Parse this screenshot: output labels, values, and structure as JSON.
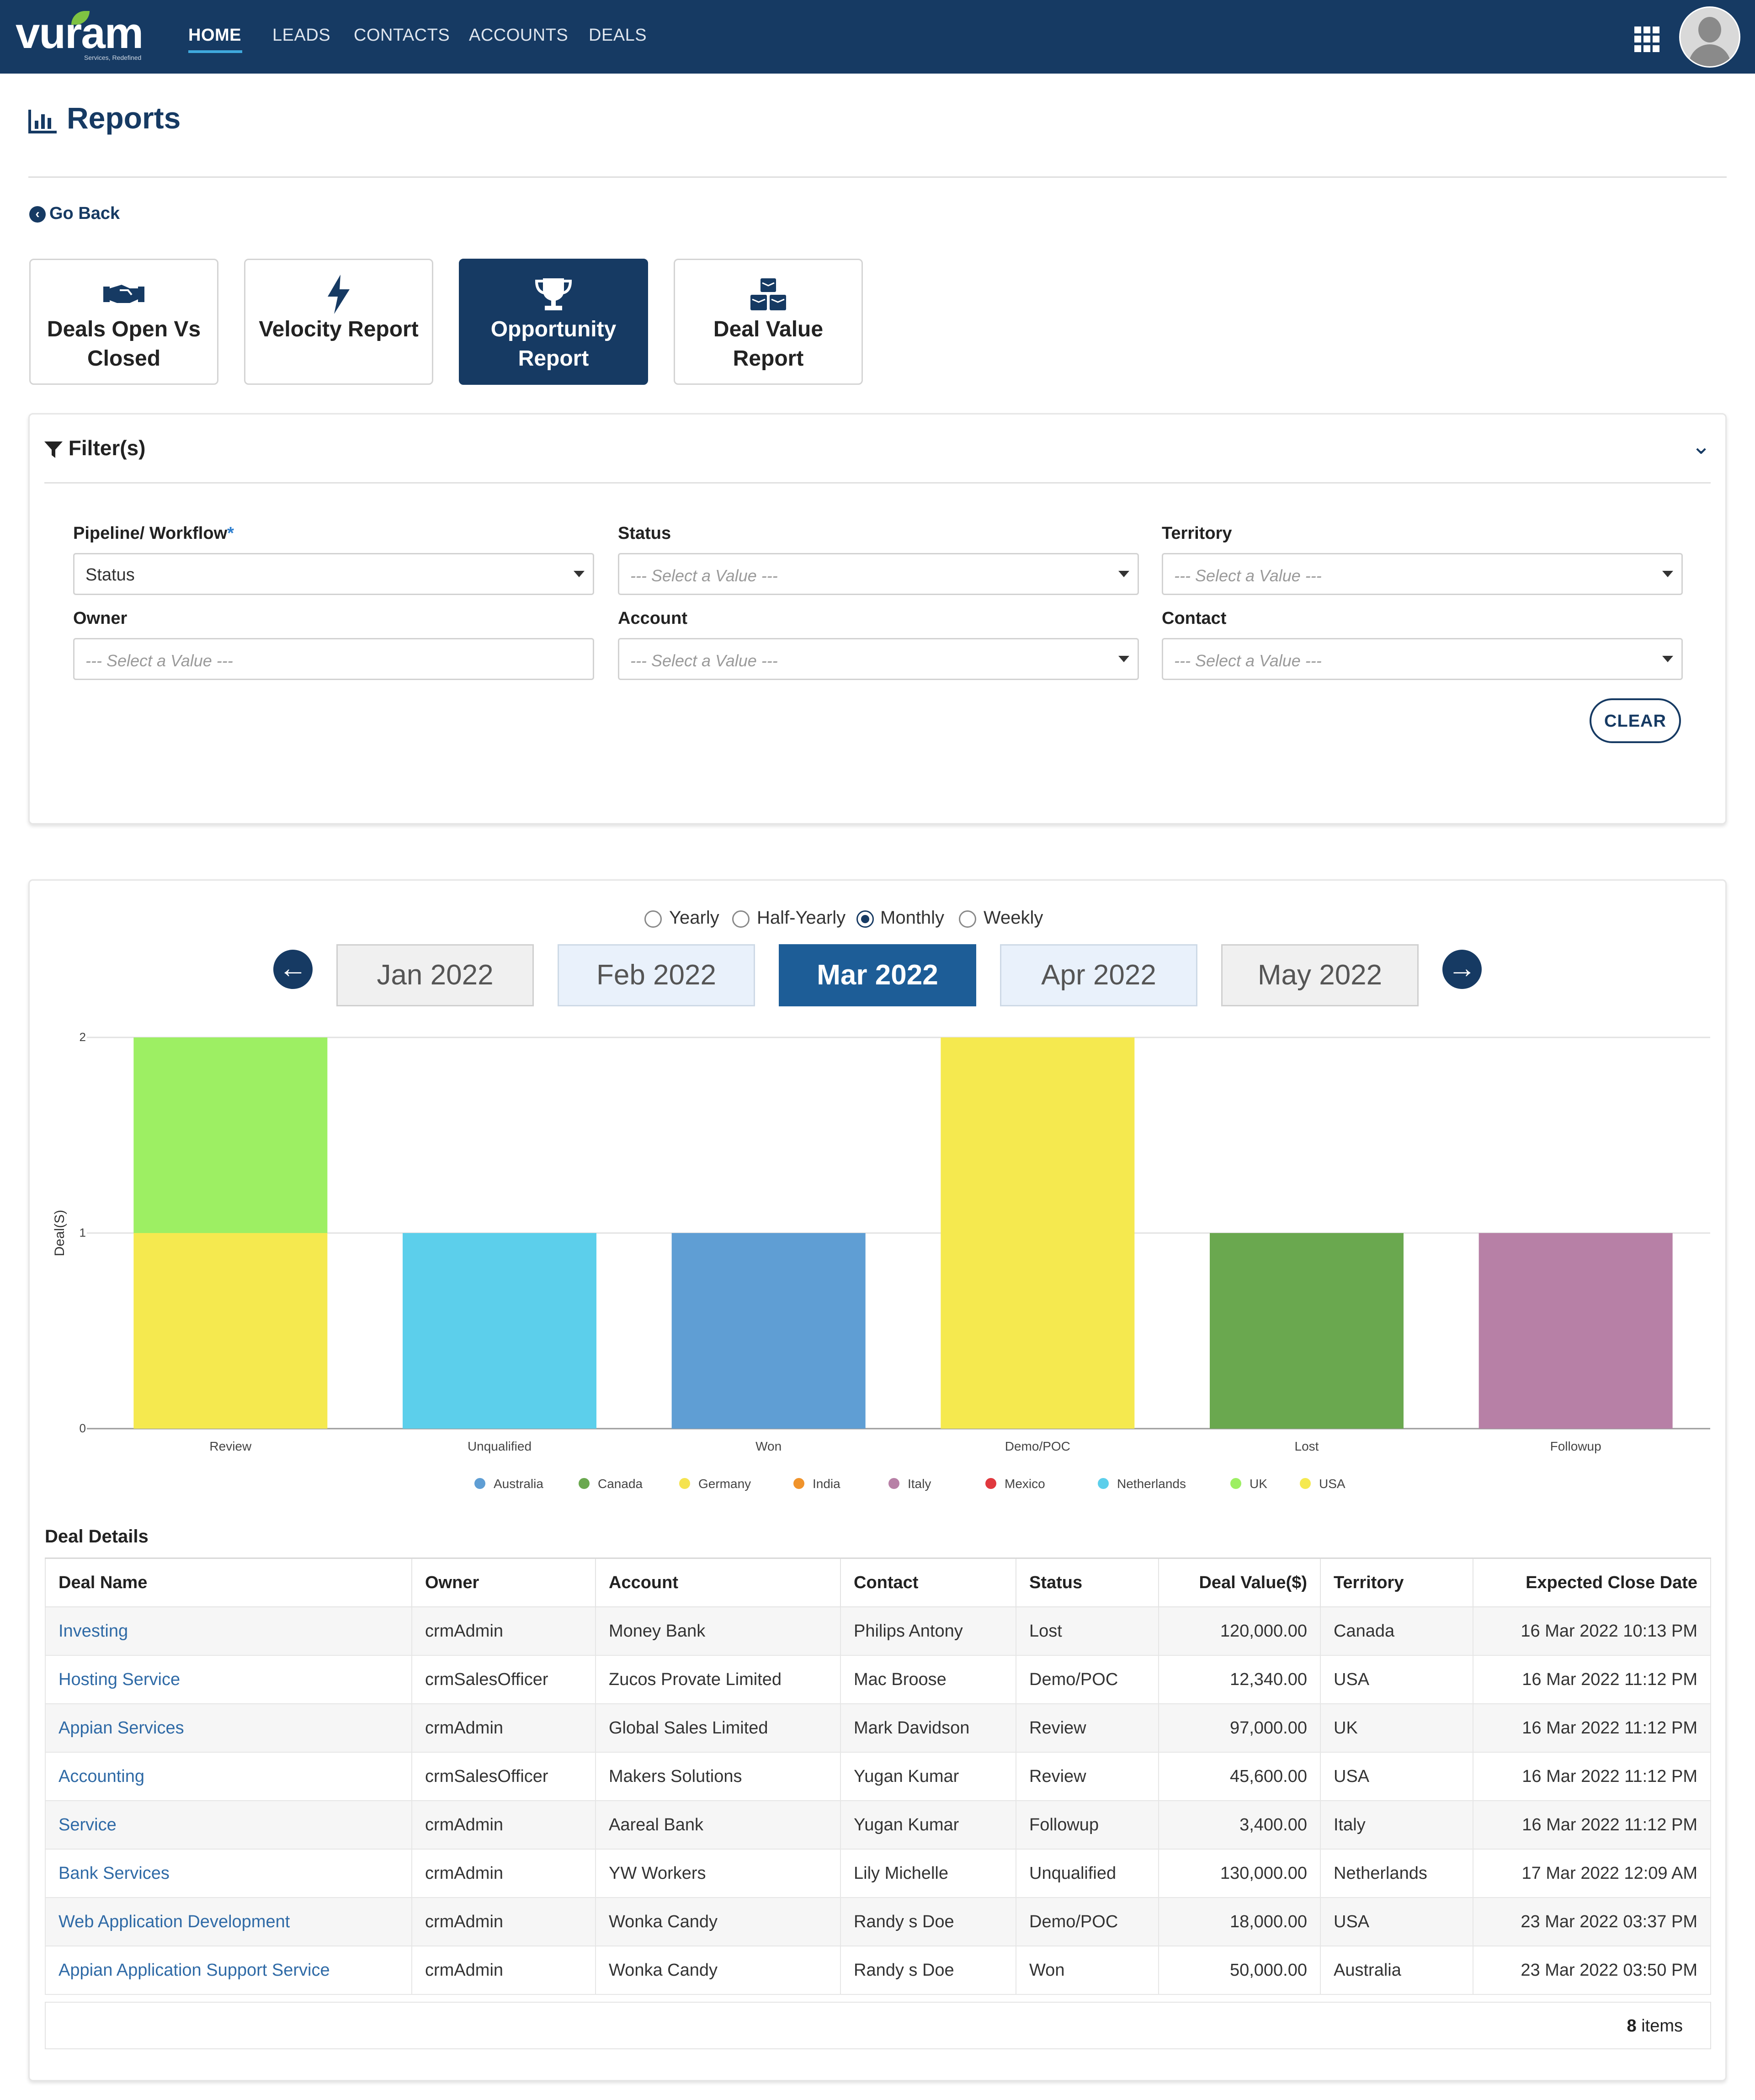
{
  "brand": {
    "logo": "vuram",
    "tagline": "Services, Redefined"
  },
  "nav": {
    "items": [
      "HOME",
      "LEADS",
      "CONTACTS",
      "ACCOUNTS",
      "DEALS"
    ],
    "active": "HOME"
  },
  "page": {
    "title": "Reports",
    "back": "Go Back"
  },
  "report_tabs": [
    {
      "label": "Deals Open Vs Closed",
      "icon": "handshake-icon"
    },
    {
      "label": "Velocity Report",
      "icon": "bolt-icon"
    },
    {
      "label": "Opportunity Report",
      "icon": "trophy-icon",
      "active": true
    },
    {
      "label": "Deal Value Report",
      "icon": "cubes-icon"
    }
  ],
  "filters": {
    "title": "Filter(s)",
    "pipeline": {
      "label": "Pipeline/ Workflow",
      "required": "*",
      "value": "Status"
    },
    "status": {
      "label": "Status",
      "placeholder": "--- Select a Value ---"
    },
    "territory": {
      "label": "Territory",
      "placeholder": "--- Select a Value ---"
    },
    "owner": {
      "label": "Owner",
      "placeholder": "--- Select a Value ---"
    },
    "account": {
      "label": "Account",
      "placeholder": "--- Select a Value ---"
    },
    "contact": {
      "label": "Contact",
      "placeholder": "--- Select a Value ---"
    },
    "clear_label": "CLEAR"
  },
  "period": {
    "options": [
      "Yearly",
      "Half-Yearly",
      "Monthly",
      "Weekly"
    ],
    "selected": "Monthly",
    "months": [
      "Jan 2022",
      "Feb 2022",
      "Mar 2022",
      "Apr 2022",
      "May 2022"
    ],
    "active_month": "Mar 2022"
  },
  "colors": {
    "brand": "#163a63",
    "Australia": "#5f9ed4",
    "Canada": "#6aa84f",
    "Germany": "#f5e34f",
    "India": "#f0932b",
    "Italy": "#b780a6",
    "Mexico": "#e0383e",
    "Netherlands": "#5ccfeb",
    "UK": "#9def63",
    "USA": "#f5e94f"
  },
  "chart_data": {
    "type": "bar",
    "stacked": true,
    "ylabel": "Deal(S)",
    "ylim": [
      0,
      2
    ],
    "yticks": [
      0,
      1,
      2
    ],
    "categories": [
      "Review",
      "Unqualified",
      "Won",
      "Demo/POC",
      "Lost",
      "Followup"
    ],
    "series": [
      {
        "name": "Australia",
        "values": [
          0,
          0,
          1,
          0,
          0,
          0
        ]
      },
      {
        "name": "Canada",
        "values": [
          0,
          0,
          0,
          0,
          1,
          0
        ]
      },
      {
        "name": "Germany",
        "values": [
          0,
          0,
          0,
          0,
          0,
          0
        ]
      },
      {
        "name": "India",
        "values": [
          0,
          0,
          0,
          0,
          0,
          0
        ]
      },
      {
        "name": "Italy",
        "values": [
          0,
          0,
          0,
          0,
          0,
          1
        ]
      },
      {
        "name": "Mexico",
        "values": [
          0,
          0,
          0,
          0,
          0,
          0
        ]
      },
      {
        "name": "Netherlands",
        "values": [
          0,
          1,
          0,
          0,
          0,
          0
        ]
      },
      {
        "name": "UK",
        "values": [
          1,
          0,
          0,
          0,
          0,
          0
        ]
      },
      {
        "name": "USA",
        "values": [
          1,
          0,
          0,
          2,
          0,
          0
        ]
      }
    ],
    "legend_position": "bottom",
    "grid": true
  },
  "deal_details": {
    "title": "Deal Details",
    "columns": [
      "Deal Name",
      "Owner",
      "Account",
      "Contact",
      "Status",
      "Deal Value($)",
      "Territory",
      "Expected Close Date"
    ],
    "rows": [
      [
        "Investing",
        "crmAdmin",
        "Money Bank",
        "Philips Antony",
        "Lost",
        "120,000.00",
        "Canada",
        "16 Mar 2022 10:13 PM"
      ],
      [
        "Hosting Service",
        "crmSalesOfficer",
        "Zucos Provate Limited",
        "Mac Broose",
        "Demo/POC",
        "12,340.00",
        "USA",
        "16 Mar 2022 11:12 PM"
      ],
      [
        "Appian Services",
        "crmAdmin",
        "Global Sales Limited",
        "Mark Davidson",
        "Review",
        "97,000.00",
        "UK",
        "16 Mar 2022 11:12 PM"
      ],
      [
        "Accounting",
        "crmSalesOfficer",
        "Makers Solutions",
        "Yugan Kumar",
        "Review",
        "45,600.00",
        "USA",
        "16 Mar 2022 11:12 PM"
      ],
      [
        "Service",
        "crmAdmin",
        "Aareal Bank",
        "Yugan Kumar",
        "Followup",
        "3,400.00",
        "Italy",
        "16 Mar 2022 11:12 PM"
      ],
      [
        "Bank Services",
        "crmAdmin",
        "YW Workers",
        "Lily Michelle",
        "Unqualified",
        "130,000.00",
        "Netherlands",
        "17 Mar 2022 12:09 AM"
      ],
      [
        "Web Application Development",
        "crmAdmin",
        "Wonka Candy",
        "Randy s Doe",
        "Demo/POC",
        "18,000.00",
        "USA",
        "23 Mar 2022 03:37 PM"
      ],
      [
        "Appian Application Support Service",
        "crmAdmin",
        "Wonka Candy",
        "Randy s Doe",
        "Won",
        "50,000.00",
        "Australia",
        "23 Mar 2022 03:50 PM"
      ]
    ],
    "count": "8",
    "count_suffix": " items"
  }
}
